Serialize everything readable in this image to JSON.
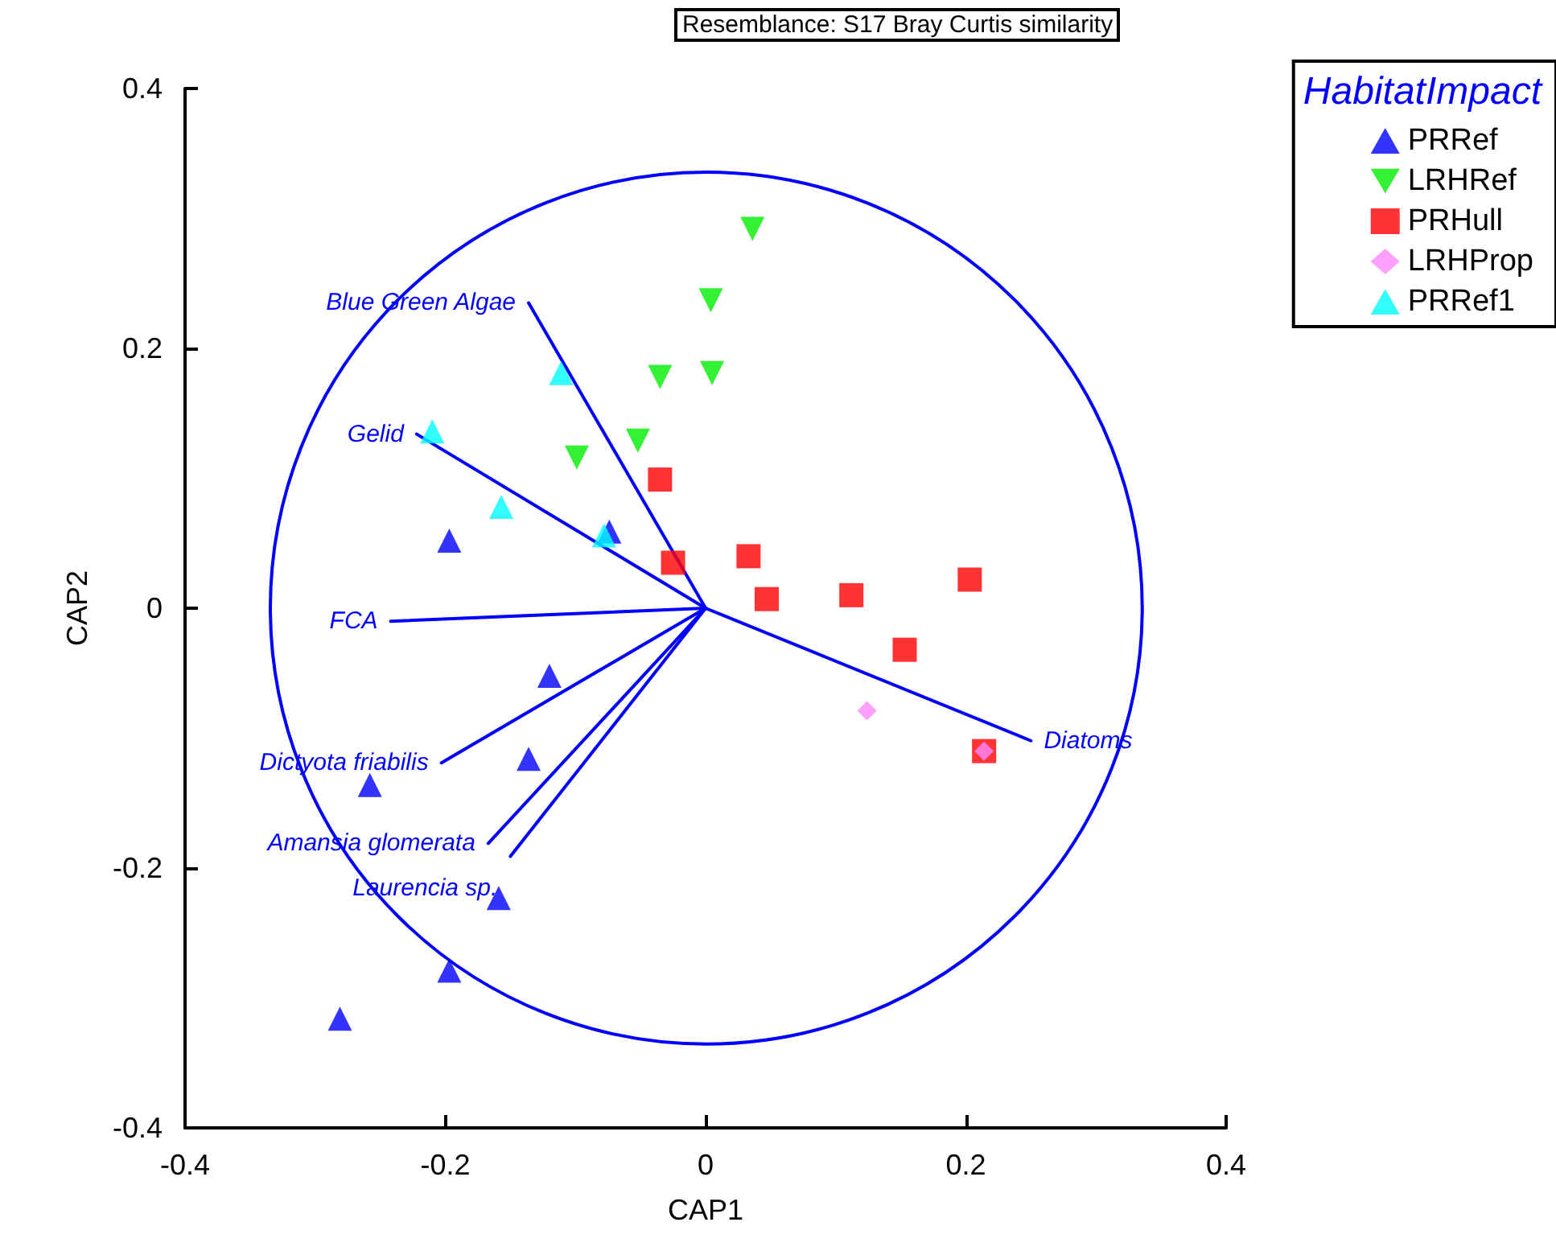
{
  "chart_data": {
    "type": "scatter",
    "xlabel": "CAP1",
    "ylabel": "CAP2",
    "legend_title": "HabitatImpact",
    "legend": "top right",
    "grid": false,
    "annotations": [
      "Resemblance: S17 Bray Curtis similarity"
    ],
    "xlim": [
      -0.4,
      0.4
    ],
    "xticks": [
      -0.4,
      -0.2,
      0,
      0.2,
      0.4
    ],
    "ylim": [
      -0.4,
      0.4
    ],
    "yticks": [
      -0.4,
      -0.2,
      0,
      0.2,
      0.4
    ],
    "series": [
      {
        "name": "PRRef",
        "type": "scatter",
        "marker": "triangle",
        "color": "#0000ff",
        "x": [
          -0.197,
          -0.074,
          -0.12,
          -0.136,
          -0.258,
          -0.159,
          -0.197,
          -0.281
        ],
        "values": [
          0.052,
          0.059,
          -0.052,
          -0.116,
          -0.136,
          -0.223,
          -0.279,
          -0.316
        ]
      },
      {
        "name": "LRHRef",
        "type": "scatter",
        "marker": "triangle-down",
        "color": "#00ee00",
        "x": [
          0.036,
          0.004,
          0.005,
          -0.035,
          -0.052,
          -0.099
        ],
        "values": [
          0.292,
          0.237,
          0.181,
          0.178,
          0.129,
          0.116
        ]
      },
      {
        "name": "PRHull",
        "type": "scatter",
        "marker": "square",
        "color": "#ff0000",
        "x": [
          -0.035,
          -0.025,
          0.033,
          0.047,
          0.112,
          0.153,
          0.203,
          0.214
        ],
        "values": [
          0.099,
          0.035,
          0.04,
          0.007,
          0.01,
          -0.032,
          0.022,
          -0.11
        ]
      },
      {
        "name": "LRHProp",
        "type": "scatter",
        "marker": "diamond",
        "color": "#ff88ff",
        "x": [
          0.124,
          0.214
        ],
        "values": [
          -0.079,
          -0.11
        ]
      },
      {
        "name": "PRRef1",
        "type": "scatter",
        "marker": "triangle",
        "color": "#00ffff",
        "x": [
          -0.21,
          -0.111,
          -0.157,
          -0.078
        ],
        "values": [
          0.136,
          0.181,
          0.078,
          0.056
        ]
      },
      {
        "name": "Blue Green Algae",
        "type": "line",
        "color": "#0000ff",
        "x": [
          0,
          -0.136
        ],
        "values": [
          0,
          0.235
        ]
      },
      {
        "name": "Gelid",
        "type": "line",
        "color": "#0000ff",
        "x": [
          0,
          -0.222
        ],
        "values": [
          0,
          0.134
        ]
      },
      {
        "name": "FCA",
        "type": "line",
        "color": "#0000ff",
        "x": [
          0,
          -0.242
        ],
        "values": [
          0,
          -0.01
        ]
      },
      {
        "name": "Dictyota friabilis",
        "type": "line",
        "color": "#0000ff",
        "x": [
          0,
          -0.203
        ],
        "values": [
          0,
          -0.119
        ]
      },
      {
        "name": "Amansia glomerata",
        "type": "line",
        "color": "#0000ff",
        "x": [
          0,
          -0.167
        ],
        "values": [
          0,
          -0.181
        ]
      },
      {
        "name": "Laurencia sp.",
        "type": "line",
        "color": "#0000ff",
        "x": [
          0,
          -0.15
        ],
        "values": [
          0,
          -0.191
        ]
      },
      {
        "name": "Diatoms",
        "type": "line",
        "color": "#0000ff",
        "x": [
          0,
          0.25
        ],
        "values": [
          0,
          -0.102
        ]
      }
    ]
  }
}
